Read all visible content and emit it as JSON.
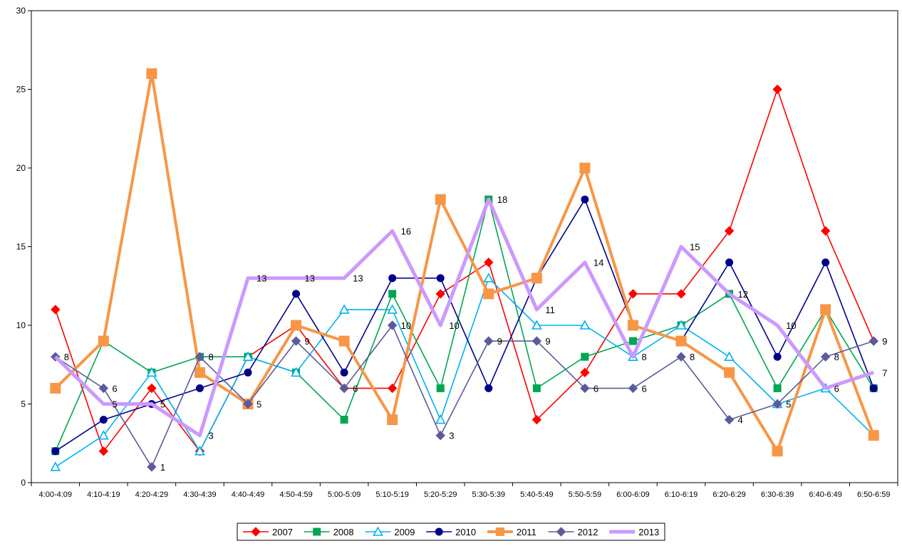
{
  "chart_data": {
    "type": "line",
    "title": "",
    "xlabel": "",
    "ylabel": "",
    "ylim": [
      0,
      30
    ],
    "yticks": [
      "0",
      "5",
      "10",
      "15",
      "20",
      "25",
      "30"
    ],
    "grid": false,
    "legend_position": "bottom",
    "categories": [
      "4:00-4:09",
      "4:10-4:19",
      "4:20-4:29",
      "4:30-4:39",
      "4:40-4:49",
      "4:50-4:59",
      "5:00-5:09",
      "5:10-5:19",
      "5:20-5:29",
      "5:30-5:39",
      "5:40-5:49",
      "5:50-5:59",
      "6:00-6:09",
      "6:10-6:19",
      "6:20-6:29",
      "6:30-6:39",
      "6:40-6:49",
      "6:50-6:59"
    ],
    "series": [
      {
        "name": "2007",
        "color": "#ff0000",
        "marker": "diamond",
        "values": [
          11,
          2,
          6,
          2,
          8,
          10,
          6,
          6,
          12,
          14,
          4,
          7,
          12,
          12,
          16,
          25,
          16,
          9
        ]
      },
      {
        "name": "2008",
        "color": "#00a651",
        "marker": "square",
        "values": [
          2,
          9,
          7,
          8,
          8,
          7,
          4,
          12,
          6,
          18,
          6,
          8,
          9,
          10,
          12,
          6,
          11,
          6
        ]
      },
      {
        "name": "2009",
        "color": "#00b0f0",
        "marker": "triangle",
        "values": [
          1,
          3,
          7,
          2,
          8,
          7,
          11,
          11,
          4,
          13,
          10,
          10,
          8,
          10,
          8,
          5,
          6,
          3
        ]
      },
      {
        "name": "2010",
        "color": "#00008b",
        "marker": "circle",
        "values": [
          2,
          4,
          5,
          6,
          7,
          12,
          7,
          13,
          13,
          6,
          13,
          18,
          10,
          9,
          14,
          8,
          14,
          6
        ]
      },
      {
        "name": "2011",
        "color": "#f79646",
        "marker": "square",
        "values": [
          6,
          9,
          26,
          7,
          5,
          10,
          9,
          4,
          18,
          12,
          13,
          20,
          10,
          9,
          7,
          2,
          11,
          3
        ]
      },
      {
        "name": "2012",
        "color": "#5b5b9b",
        "marker": "diamond",
        "values": [
          8,
          6,
          1,
          8,
          5,
          9,
          6,
          10,
          3,
          9,
          9,
          6,
          6,
          8,
          4,
          5,
          8,
          9
        ]
      },
      {
        "name": "2013",
        "color": "#cc99ff",
        "marker": "none",
        "values": [
          8,
          5,
          5,
          3,
          13,
          13,
          13,
          16,
          10,
          18,
          11,
          14,
          8,
          15,
          12,
          10,
          6,
          7
        ]
      }
    ],
    "data_labels": [
      {
        "series": "2012",
        "category": "4:00-4:09",
        "text": "8"
      },
      {
        "series": "2012",
        "category": "4:10-4:19",
        "text": "6"
      },
      {
        "series": "2013",
        "category": "4:10-4:19",
        "text": "5"
      },
      {
        "series": "2013",
        "category": "4:20-4:29",
        "text": "5"
      },
      {
        "series": "2012",
        "category": "4:20-4:29",
        "text": "1"
      },
      {
        "series": "2012",
        "category": "4:30-4:39",
        "text": "8"
      },
      {
        "series": "2013",
        "category": "4:30-4:39",
        "text": "3"
      },
      {
        "series": "2013",
        "category": "4:40-4:49",
        "text": "13"
      },
      {
        "series": "2012",
        "category": "4:40-4:49",
        "text": "5"
      },
      {
        "series": "2013",
        "category": "4:50-4:59",
        "text": "13"
      },
      {
        "series": "2012",
        "category": "4:50-4:59",
        "text": "9"
      },
      {
        "series": "2013",
        "category": "5:00-5:09",
        "text": "13"
      },
      {
        "series": "2012",
        "category": "5:00-5:09",
        "text": "6"
      },
      {
        "series": "2013",
        "category": "5:10-5:19",
        "text": "16"
      },
      {
        "series": "2012",
        "category": "5:10-5:19",
        "text": "10"
      },
      {
        "series": "2013",
        "category": "5:20-5:29",
        "text": "10"
      },
      {
        "series": "2012",
        "category": "5:20-5:29",
        "text": "3"
      },
      {
        "series": "2013",
        "category": "5:30-5:39",
        "text": "18"
      },
      {
        "series": "2012",
        "category": "5:30-5:39",
        "text": "9"
      },
      {
        "series": "2013",
        "category": "5:40-5:49",
        "text": "11"
      },
      {
        "series": "2012",
        "category": "5:40-5:49",
        "text": "9"
      },
      {
        "series": "2013",
        "category": "5:50-5:59",
        "text": "14"
      },
      {
        "series": "2012",
        "category": "5:50-5:59",
        "text": "6"
      },
      {
        "series": "2013",
        "category": "6:00-6:09",
        "text": "8"
      },
      {
        "series": "2012",
        "category": "6:00-6:09",
        "text": "6"
      },
      {
        "series": "2013",
        "category": "6:10-6:19",
        "text": "15"
      },
      {
        "series": "2012",
        "category": "6:10-6:19",
        "text": "8"
      },
      {
        "series": "2013",
        "category": "6:20-6:29",
        "text": "12"
      },
      {
        "series": "2012",
        "category": "6:20-6:29",
        "text": "4"
      },
      {
        "series": "2013",
        "category": "6:30-6:39",
        "text": "10"
      },
      {
        "series": "2012",
        "category": "6:30-6:39",
        "text": "5"
      },
      {
        "series": "2012",
        "category": "6:40-6:49",
        "text": "8"
      },
      {
        "series": "2013",
        "category": "6:40-6:49",
        "text": "6"
      },
      {
        "series": "2012",
        "category": "6:50-6:59",
        "text": "9"
      },
      {
        "series": "2013",
        "category": "6:50-6:59",
        "text": "7"
      }
    ]
  }
}
